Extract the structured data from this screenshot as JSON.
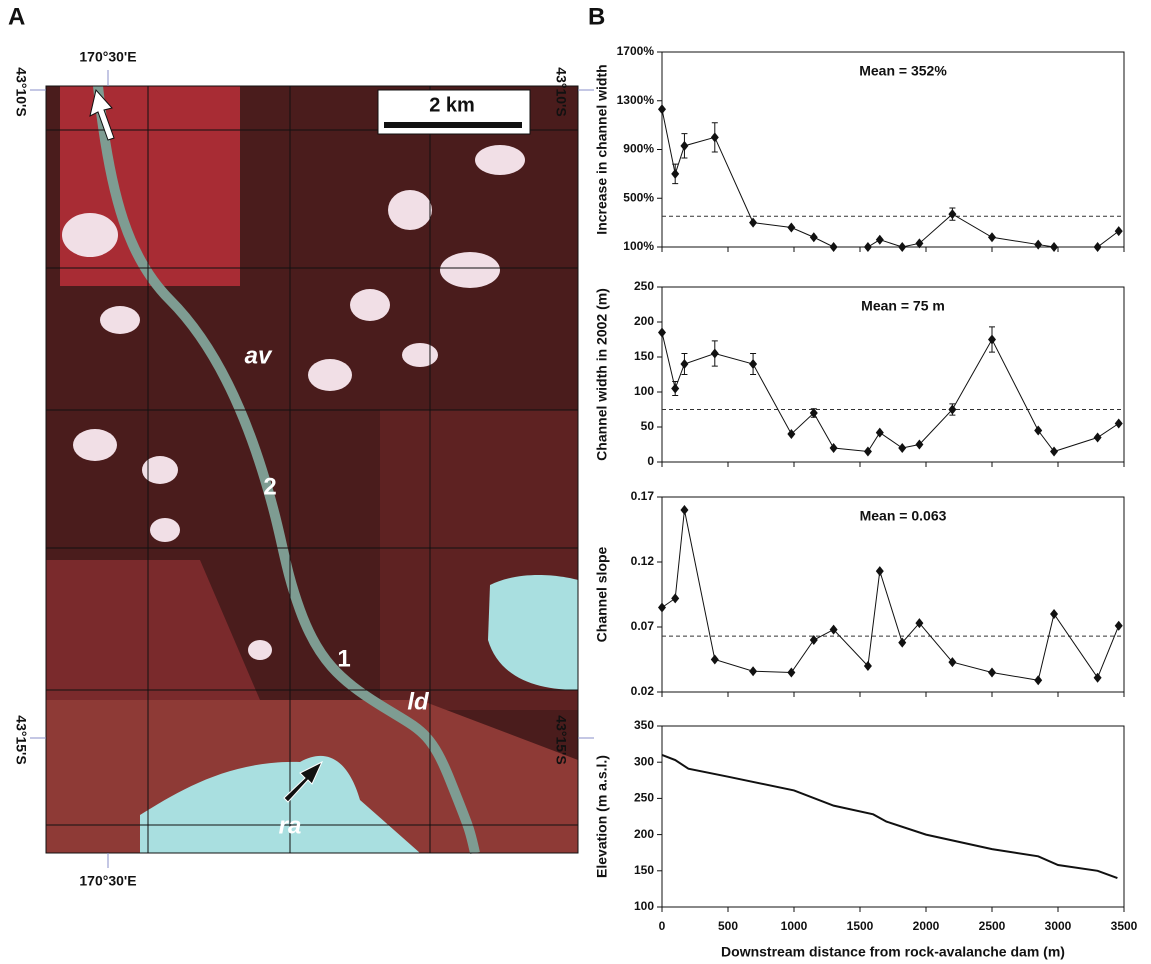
{
  "panel_a": {
    "panel_label": "A",
    "lon_top": "170°30'E",
    "lon_bottom": "170°30'E",
    "lat_left_top": "43°10'S",
    "lat_right_top": "43°10'S",
    "lat_left_bottom": "43°15'S",
    "lat_right_bottom": "43°15'S",
    "scale": "2 km",
    "labels": [
      "av",
      "2",
      "1",
      "ld",
      "ra"
    ]
  },
  "panel_b": {
    "panel_label": "B"
  },
  "chart_data": [
    {
      "type": "line",
      "ylabel": "Increase in channel width",
      "annotation": "Mean = 352%",
      "mean_line": 352,
      "x": [
        0,
        100,
        170,
        400,
        690,
        980,
        1150,
        1300,
        1560,
        1650,
        1820,
        1950,
        2200,
        2500,
        2850,
        2970,
        3300,
        3460
      ],
      "values": [
        1230,
        700,
        930,
        1000,
        300,
        260,
        180,
        100,
        100,
        160,
        100,
        130,
        370,
        180,
        120,
        100,
        100,
        230
      ],
      "errors": [
        null,
        80,
        100,
        120,
        null,
        null,
        null,
        null,
        null,
        null,
        null,
        null,
        50,
        null,
        null,
        null,
        null,
        null
      ],
      "color": "#111111",
      "xlim": [
        0,
        3500
      ],
      "xticks": [
        0,
        500,
        1000,
        1500,
        2000,
        2500,
        3000,
        3500
      ],
      "xtick_labels": false,
      "ylim": [
        100,
        1700
      ],
      "yticks": [
        {
          "value": 100,
          "label": "100%"
        },
        {
          "value": 500,
          "label": "500%"
        },
        {
          "value": 900,
          "label": "900%"
        },
        {
          "value": 1300,
          "label": "1300%"
        },
        {
          "value": 1700,
          "label": "1700%"
        }
      ],
      "markers": true
    },
    {
      "type": "line",
      "ylabel": "Channel width in 2002 (m)",
      "annotation": "Mean = 75 m",
      "mean_line": 75,
      "x": [
        0,
        100,
        170,
        400,
        690,
        980,
        1150,
        1300,
        1560,
        1650,
        1820,
        1950,
        2200,
        2500,
        2850,
        2970,
        3300,
        3460
      ],
      "values": [
        185,
        105,
        140,
        155,
        140,
        40,
        70,
        20,
        15,
        42,
        20,
        25,
        75,
        175,
        45,
        15,
        35,
        55
      ],
      "errors": [
        null,
        10,
        15,
        18,
        15,
        null,
        6,
        null,
        null,
        null,
        null,
        null,
        8,
        18,
        null,
        null,
        null,
        null
      ],
      "color": "#111111",
      "xlim": [
        0,
        3500
      ],
      "xticks": [
        0,
        500,
        1000,
        1500,
        2000,
        2500,
        3000,
        3500
      ],
      "xtick_labels": false,
      "ylim": [
        0,
        250
      ],
      "yticks": [
        0,
        50,
        100,
        150,
        200,
        250
      ],
      "markers": true
    },
    {
      "type": "line",
      "ylabel": "Channel slope",
      "annotation": "Mean = 0.063",
      "mean_line": 0.063,
      "x": [
        0,
        100,
        170,
        400,
        690,
        980,
        1150,
        1300,
        1560,
        1650,
        1820,
        1950,
        2200,
        2500,
        2850,
        2970,
        3300,
        3460
      ],
      "values": [
        0.085,
        0.092,
        0.16,
        0.045,
        0.036,
        0.035,
        0.06,
        0.068,
        0.04,
        0.113,
        0.058,
        0.073,
        0.043,
        0.035,
        0.029,
        0.08,
        0.031,
        0.071
      ],
      "color": "#111111",
      "xlim": [
        0,
        3500
      ],
      "xticks": [
        0,
        500,
        1000,
        1500,
        2000,
        2500,
        3000,
        3500
      ],
      "xtick_labels": false,
      "ylim": [
        0.02,
        0.17
      ],
      "yticks": [
        0.02,
        0.07,
        0.12,
        0.17
      ],
      "markers": true
    },
    {
      "type": "line",
      "ylabel": "Elevation (m a.s.l.)",
      "xlabel": "Downstream distance from rock-avalanche dam (m)",
      "x": [
        0,
        100,
        200,
        500,
        1000,
        1300,
        1600,
        1700,
        2000,
        2500,
        2850,
        3000,
        3300,
        3450
      ],
      "values": [
        310,
        303,
        291,
        280,
        261,
        240,
        228,
        218,
        200,
        180,
        170,
        158,
        150,
        140
      ],
      "color": "#111111",
      "xlim": [
        0,
        3500
      ],
      "xticks": [
        0,
        500,
        1000,
        1500,
        2000,
        2500,
        3000,
        3500
      ],
      "xtick_labels": true,
      "ylim": [
        100,
        350
      ],
      "yticks": [
        100,
        150,
        200,
        250,
        300,
        350
      ],
      "markers": false
    }
  ]
}
